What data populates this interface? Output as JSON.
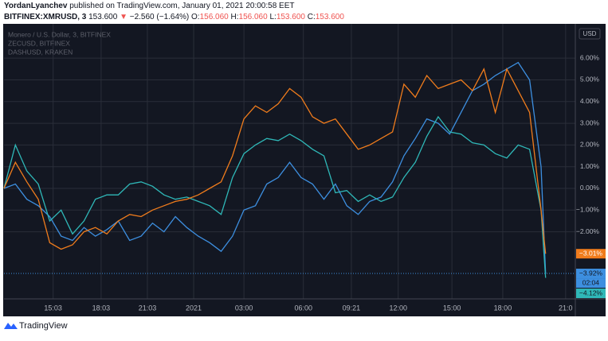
{
  "header": {
    "author": "YordanLyanchev",
    "published": "published on TradingView.com, January 01, 2021 20:00:58 EET",
    "symbol": "BITFINEX:XMRUSD, 3",
    "last": "153.600",
    "arrow": "▼",
    "change": "−2.560 (−1.64%)",
    "ohlc": [
      {
        "label": "O:",
        "value": "156.060"
      },
      {
        "label": "H:",
        "value": "156.060"
      },
      {
        "label": "L:",
        "value": "153.600"
      },
      {
        "label": "C:",
        "value": "153.600"
      }
    ]
  },
  "brand": "TradingView",
  "chart_data": {
    "type": "line",
    "currency": "USD",
    "countdown": "02:04",
    "xlim": [
      0,
      100
    ],
    "ylim": [
      -5.09,
      7.58
    ],
    "xticks": [
      {
        "value": 8.6,
        "label": "15:03"
      },
      {
        "value": 17,
        "label": "18:03"
      },
      {
        "value": 25.1,
        "label": "21:03"
      },
      {
        "value": 33.2,
        "label": "2021"
      },
      {
        "value": 42,
        "label": "03:00"
      },
      {
        "value": 52.4,
        "label": "06:00"
      },
      {
        "value": 60.8,
        "label": "09:21"
      },
      {
        "value": 69,
        "label": "12:00"
      },
      {
        "value": 78.4,
        "label": "15:00"
      },
      {
        "value": 87.3,
        "label": "18:00"
      },
      {
        "value": 98.3,
        "label": "21:0"
      }
    ],
    "yticks": [
      {
        "value": -2,
        "label": "−2.00%"
      },
      {
        "value": -1,
        "label": "−1.00%"
      },
      {
        "value": 0,
        "label": "0.00%"
      },
      {
        "value": 1,
        "label": "1.00%"
      },
      {
        "value": 2,
        "label": "2.00%"
      },
      {
        "value": 3,
        "label": "3.00%"
      },
      {
        "value": 4,
        "label": "4.00%"
      },
      {
        "value": 5,
        "label": "5.00%"
      },
      {
        "value": 6,
        "label": "6.00%"
      }
    ],
    "grid": true,
    "x": [
      0,
      2,
      4,
      6,
      8,
      10,
      12,
      14,
      16,
      18,
      20,
      22,
      24,
      26,
      28,
      30,
      32,
      34,
      36,
      38,
      40,
      42,
      44,
      46,
      48,
      50,
      52,
      54,
      56,
      58,
      60,
      62,
      64,
      66,
      68,
      70,
      72,
      74,
      76,
      78,
      80,
      82,
      84,
      86,
      88,
      90,
      92,
      94,
      94.8
    ],
    "series": [
      {
        "name": "Monero / U.S. Dollar, 3, BITFINEX",
        "color": "#3d8fe0",
        "last_label": "−3.92%",
        "values": [
          0,
          0.2,
          -0.5,
          -0.8,
          -1.3,
          -2.2,
          -2.4,
          -1.8,
          -2.2,
          -1.9,
          -1.5,
          -2.4,
          -2.2,
          -1.6,
          -2.0,
          -1.3,
          -1.8,
          -2.2,
          -2.5,
          -2.9,
          -2.2,
          -1.0,
          -0.8,
          0.2,
          0.5,
          1.2,
          0.5,
          0.2,
          -0.5,
          0.2,
          -0.8,
          -1.2,
          -0.6,
          -0.4,
          0.3,
          1.5,
          2.3,
          3.2,
          3.0,
          2.5,
          3.5,
          4.5,
          4.8,
          5.2,
          5.5,
          5.8,
          5.0,
          1,
          -3.92
        ]
      },
      {
        "name": "ZECUSD, BITFINEX",
        "color": "#2fb8b8",
        "last_label": "−4.12%",
        "values": [
          0,
          2,
          0.8,
          0.2,
          -1.5,
          -1,
          -2.1,
          -1.5,
          -0.5,
          -0.3,
          -0.3,
          0.2,
          0.3,
          0.1,
          -0.3,
          -0.5,
          -0.4,
          -0.6,
          -0.8,
          -1.2,
          0.5,
          1.6,
          2,
          2.3,
          2.2,
          2.5,
          2.2,
          1.8,
          1.5,
          -0.2,
          -0.1,
          -0.6,
          -0.3,
          -0.6,
          -0.4,
          0.5,
          1.2,
          2.4,
          3.3,
          2.6,
          2.5,
          2.1,
          2,
          1.6,
          1.4,
          2.0,
          1.8,
          -1,
          -4.12
        ]
      },
      {
        "name": "DASHUSD, KRAKEN",
        "color": "#f07c1c",
        "last_label": "−3.01%",
        "values": [
          0,
          1.2,
          0.3,
          -0.5,
          -2.5,
          -2.8,
          -2.6,
          -2,
          -1.8,
          -2.1,
          -1.5,
          -1.2,
          -1.3,
          -1,
          -0.8,
          -0.6,
          -0.5,
          -0.3,
          0,
          0.3,
          1.5,
          3.2,
          3.8,
          3.5,
          3.9,
          4.6,
          4.2,
          3.3,
          3,
          3.2,
          2.5,
          1.8,
          2,
          2.3,
          2.6,
          4.8,
          4.2,
          5.2,
          4.6,
          4.8,
          5,
          4.5,
          5.5,
          3.5,
          5.5,
          4.5,
          3.5,
          -1,
          -3.01
        ]
      }
    ]
  }
}
